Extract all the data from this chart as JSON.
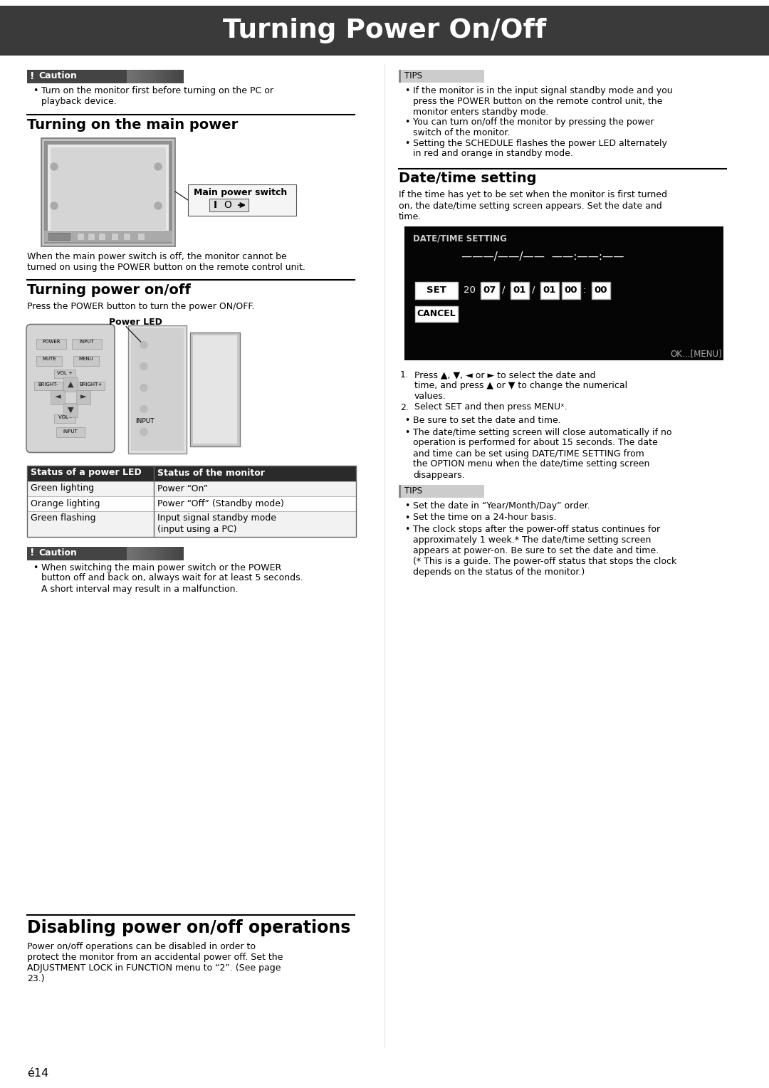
{
  "title": "Turning Power On/Off",
  "title_bg": "#3a3a3a",
  "title_color": "#ffffff",
  "page_bg": "#ffffff",
  "page_number": "é14",
  "caution1_bullets": [
    "Turn on the monitor first before turning on the PC or\nplayback device."
  ],
  "tips1_bullets": [
    "If the monitor is in the input signal standby mode and you\npress the POWER button on the remote control unit, the\nmonitor enters standby mode.",
    "You can turn on/off the monitor by pressing the power\nswitch of the monitor.",
    "Setting the SCHEDULE flashes the power LED alternately\nin red and orange in standby mode."
  ],
  "section1_title": "Turning on the main power",
  "section1_caption": "Main power switch",
  "section1_desc": "When the main power switch is off, the monitor cannot be\nturned on using the POWER button on the remote control unit.",
  "section2_title": "Turning power on/off",
  "section2_desc": "Press the POWER button to turn the power ON/OFF.",
  "power_led_label": "Power LED",
  "table_headers": [
    "Status of a power LED",
    "Status of the monitor"
  ],
  "table_rows": [
    [
      "Green lighting",
      "Power “On”"
    ],
    [
      "Orange lighting",
      "Power “Off” (Standby mode)"
    ],
    [
      "Green flashing",
      "Input signal standby mode\n(input using a PC)"
    ]
  ],
  "caution2_bullets": [
    "When switching the main power switch or the POWER\nbutton off and back on, always wait for at least 5 seconds.\nA short interval may result in a malfunction."
  ],
  "datetime_title": "Date/time setting",
  "datetime_desc": "If the time has yet to be set when the monitor is first turned\non, the date/time setting screen appears. Set the date and\ntime.",
  "datetime_screen_label": "DATE/TIME SETTING",
  "datetime_dashes": "———/——/——  ——:——:——",
  "datetime_ok": "OK…[MENU]",
  "steps": [
    "Press ▲, ▼, ◄ or ► to select the date and\ntime, and press ▲ or ▼ to change the numerical\nvalues.",
    "Select SET and then press MENUˣ."
  ],
  "bullets_after_steps": [
    "Be sure to set the date and time.",
    "The date/time setting screen will close automatically if no\noperation is performed for about 15 seconds. The date\nand time can be set using DATE/TIME SETTING from\nthe OPTION menu when the date/time setting screen\ndisappears."
  ],
  "tips2_bullets": [
    "Set the date in “Year/Month/Day” order.",
    "Set the time on a 24-hour basis.",
    "The clock stops after the power-off status continues for\napproximately 1 week.* The date/time setting screen\nappears at power-on. Be sure to set the date and time.\n(* This is a guide. The power-off status that stops the clock\ndepends on the status of the monitor.)"
  ],
  "disabling_title": "Disabling power on/off operations",
  "disabling_desc": "Power on/off operations can be disabled in order to\nprotect the monitor from an accidental power off. Set the\nADJUSTMENT LOCK in FUNCTION menu to “2”. (See page\n23.)"
}
